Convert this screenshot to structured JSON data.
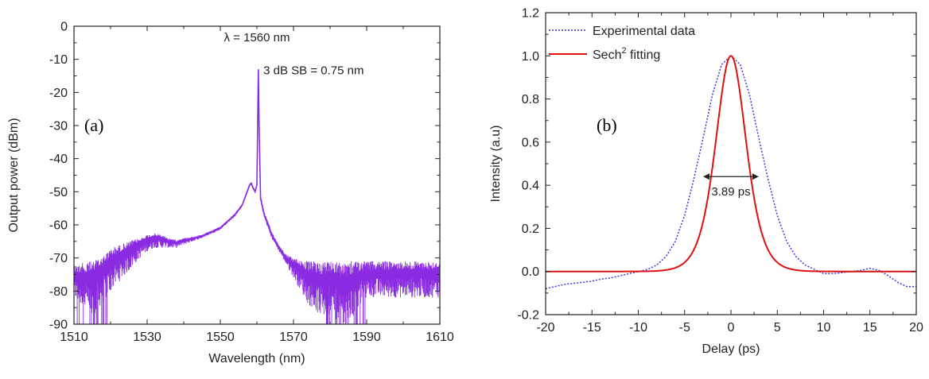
{
  "chart_data": [
    {
      "type": "line",
      "panel_label": "(a)",
      "xlabel": "Wavelength (nm)",
      "ylabel": "Output power (dBm)",
      "xlim": [
        1510,
        1610
      ],
      "ylim": [
        -90,
        0
      ],
      "xticks": [
        1510,
        1530,
        1550,
        1570,
        1590,
        1610
      ],
      "yticks": [
        0,
        -10,
        -20,
        -30,
        -40,
        -50,
        -60,
        -70,
        -80,
        -90
      ],
      "grid": false,
      "series_color": "#8a2be2",
      "annotations": [
        {
          "text": "λ = 1560 nm",
          "x": 1560,
          "y": -7
        },
        {
          "text": "3 dB SB = 0.75 nm",
          "x": 1575,
          "y": -27
        }
      ],
      "series": [
        {
          "x": [
            1510,
            1515,
            1520,
            1525,
            1528,
            1530,
            1532,
            1534,
            1536,
            1538,
            1540,
            1545,
            1550,
            1552,
            1554,
            1556,
            1557,
            1558,
            1558.5,
            1559,
            1559.5,
            1560,
            1560.2,
            1560.4,
            1560.6,
            1561,
            1562,
            1563,
            1564,
            1566,
            1568,
            1570,
            1572,
            1574,
            1576,
            1578,
            1580,
            1585,
            1590,
            1595,
            1600,
            1605,
            1610
          ],
          "y": [
            -75,
            -74,
            -70,
            -67,
            -65,
            -64,
            -63.5,
            -64,
            -65,
            -65.5,
            -65,
            -63.5,
            -61,
            -59,
            -57,
            -54,
            -51,
            -48,
            -47.5,
            -49,
            -50,
            -48,
            -30,
            -13,
            -30,
            -52,
            -57,
            -60,
            -63,
            -67,
            -70,
            -72,
            -73,
            -74,
            -75,
            -75,
            -76,
            -76,
            -76,
            -76,
            -76,
            -76,
            -76
          ],
          "y_noise_min": [
            -82,
            -88,
            -80,
            -74,
            -70,
            -68,
            -67,
            -67,
            -67,
            -67,
            -66,
            -64,
            -61.5,
            -59.5,
            -57.5,
            -54.5,
            -51.5,
            -48.5,
            -48,
            -49.5,
            -50.5,
            -48.5,
            -31,
            -14,
            -31,
            -53,
            -58,
            -61,
            -64,
            -68,
            -72,
            -76,
            -80,
            -84,
            -86,
            -88,
            -88,
            -90,
            -82,
            -82,
            -82,
            -82,
            -82
          ],
          "y_noise_max": [
            -72,
            -71,
            -67,
            -65,
            -64,
            -63,
            -62.5,
            -63,
            -64,
            -64.5,
            -64,
            -63,
            -60.5,
            -58.5,
            -56.5,
            -53.5,
            -50.5,
            -47.5,
            -47,
            -48.5,
            -49.5,
            -47.5,
            -29,
            -12.5,
            -29,
            -51,
            -56,
            -59,
            -62,
            -66,
            -69,
            -70,
            -70.5,
            -71,
            -71,
            -71,
            -71,
            -71,
            -71,
            -71,
            -71,
            -71,
            -71
          ]
        }
      ]
    },
    {
      "type": "line",
      "panel_label": "(b)",
      "xlabel": "Delay (ps)",
      "ylabel": "Intensity (a.u)",
      "xlim": [
        -20,
        20
      ],
      "ylim": [
        -0.2,
        1.2
      ],
      "xticks": [
        -20,
        -15,
        -10,
        -5,
        0,
        5,
        10,
        15,
        20
      ],
      "yticks": [
        -0.2,
        0.0,
        0.2,
        0.4,
        0.6,
        0.8,
        1.0,
        1.2
      ],
      "grid": false,
      "legend": {
        "placement": "top-left",
        "entries": [
          {
            "label": "Experimental data",
            "color": "#3a3ad8",
            "dash": "dotted"
          },
          {
            "label_main": "Sech",
            "label_sup": "2",
            "label_tail": " fitting",
            "color": "#dd1111",
            "dash": "solid"
          }
        ]
      },
      "annotations": [
        {
          "text": "3.89 ps",
          "x": 0,
          "y": 0.33,
          "arrow_from": -3.0,
          "arrow_to": 3.0,
          "arrow_y": 0.44
        }
      ],
      "series": [
        {
          "name": "Experimental data",
          "color": "#3a3ad8",
          "x": [
            -20,
            -19,
            -18,
            -17,
            -16,
            -15,
            -14,
            -13,
            -12,
            -11,
            -10,
            -9,
            -8,
            -7,
            -6,
            -5,
            -4,
            -3,
            -2,
            -1,
            0,
            1,
            2,
            3,
            4,
            5,
            6,
            7,
            8,
            9,
            10,
            11,
            12,
            13,
            14,
            15,
            16,
            17,
            18,
            19,
            20
          ],
          "y": [
            -0.08,
            -0.07,
            -0.06,
            -0.055,
            -0.05,
            -0.045,
            -0.035,
            -0.03,
            -0.02,
            -0.01,
            0.0,
            0.01,
            0.03,
            0.07,
            0.14,
            0.26,
            0.43,
            0.62,
            0.82,
            0.96,
            1.0,
            0.96,
            0.82,
            0.62,
            0.43,
            0.26,
            0.14,
            0.07,
            0.03,
            0.01,
            -0.01,
            -0.01,
            -0.005,
            0.0,
            0.005,
            0.015,
            0.005,
            -0.02,
            -0.05,
            -0.07,
            -0.07
          ]
        },
        {
          "name": "Sech2 fitting",
          "color": "#dd1111",
          "fwhm": 3.89,
          "center": 0.0,
          "peak": 1.0,
          "baseline": 0.0
        }
      ]
    }
  ]
}
